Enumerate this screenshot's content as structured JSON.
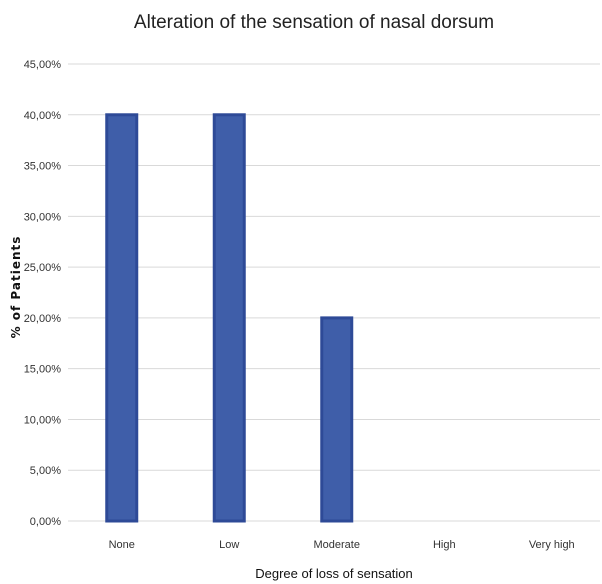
{
  "chart_data": {
    "type": "bar",
    "title": "Alteration of the sensation of nasal dorsum",
    "xlabel": "Degree of loss of sensation",
    "ylabel": "% of Patients",
    "categories": [
      "None",
      "Low",
      "Moderate",
      "High",
      "Very high"
    ],
    "values": [
      40,
      40,
      20,
      0,
      0
    ],
    "ylim": [
      0,
      45
    ],
    "yticks": [
      0,
      5,
      10,
      15,
      20,
      25,
      30,
      35,
      40,
      45
    ],
    "ytick_labels": [
      "0,00%",
      "5,00%",
      "10,00%",
      "15,00%",
      "20,00%",
      "25,00%",
      "30,00%",
      "35,00%",
      "40,00%",
      "45,00%"
    ],
    "grid": true,
    "legend": "none",
    "colors": {
      "bar_fill": "#3f5ea9",
      "bar_edge": "#2e4a97",
      "gridline": "#d9d9d9"
    }
  }
}
